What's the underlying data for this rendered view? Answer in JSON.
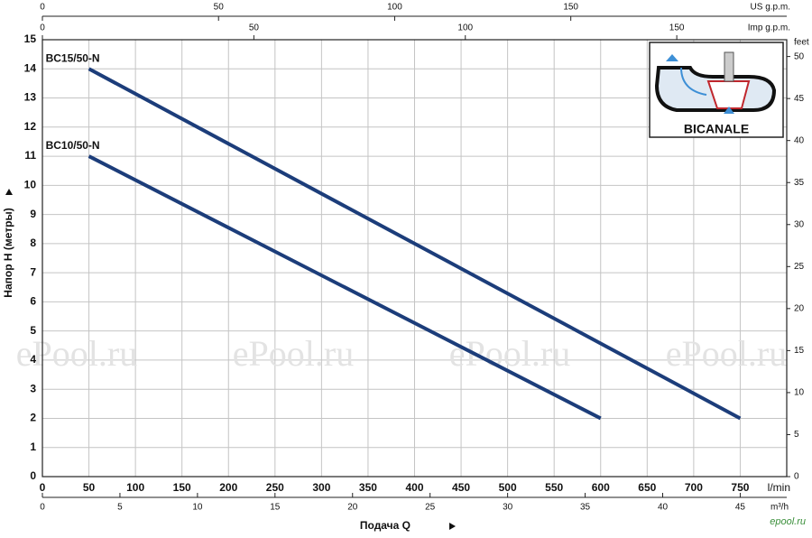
{
  "chart_data": {
    "type": "line",
    "y_label": "Напор H (метры)",
    "x_label": "Подача Q",
    "x_unit": "l/min",
    "xlim": [
      0,
      800
    ],
    "xticks": [
      0,
      50,
      100,
      150,
      200,
      250,
      300,
      350,
      400,
      450,
      500,
      550,
      600,
      650,
      700,
      750
    ],
    "ylim": [
      0,
      15
    ],
    "yticks": [
      0,
      1,
      2,
      3,
      4,
      5,
      6,
      7,
      8,
      9,
      10,
      11,
      12,
      13,
      14,
      15
    ],
    "grid": true,
    "series": [
      {
        "name": "BC15/50-N",
        "color": "#1c3d7a",
        "x": [
          50,
          750
        ],
        "values": [
          14,
          2
        ]
      },
      {
        "name": "BC10/50-N",
        "color": "#1c3d7a",
        "x": [
          50,
          600
        ],
        "values": [
          11,
          2
        ]
      }
    ],
    "us_gpm_axis": {
      "label": "US g.p.m.",
      "lim": [
        0,
        211.3
      ],
      "ticks": [
        0,
        50,
        100,
        150
      ]
    },
    "imp_gpm_axis": {
      "label": "Imp g.p.m.",
      "lim": [
        0,
        176
      ],
      "ticks": [
        0,
        50,
        100,
        150
      ]
    },
    "m3h_axis": {
      "label": "m³/h",
      "lim": [
        0,
        48
      ],
      "ticks": [
        0,
        5,
        10,
        15,
        20,
        25,
        30,
        35,
        40,
        45
      ]
    },
    "feet_axis": {
      "label": "feet",
      "lim": [
        0,
        52
      ],
      "ticks": [
        0,
        5,
        10,
        15,
        20,
        25,
        30,
        35,
        40,
        45,
        50
      ]
    },
    "watermark": "ePool.ru",
    "corner_mark": "epool.ru",
    "inset_label": "BICANALE"
  }
}
